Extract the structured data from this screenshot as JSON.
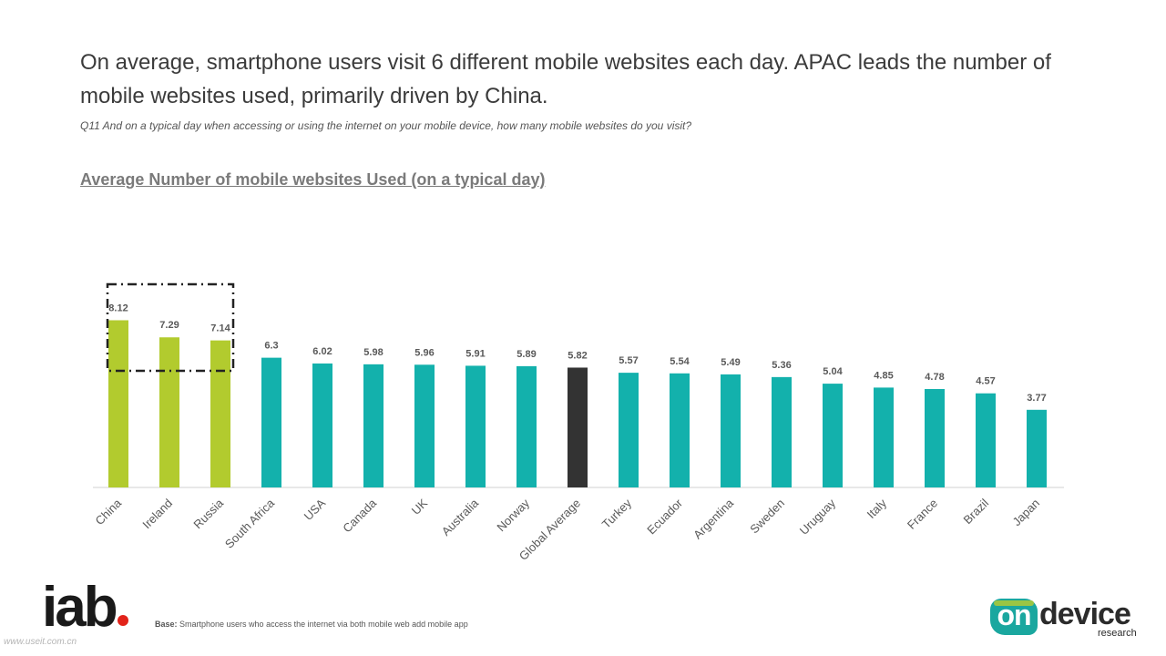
{
  "headline": "On average, smartphone users visit 6 different mobile websites each day. APAC leads the number of mobile websites used, primarily driven by China.",
  "question": "Q11 And on a typical day when accessing or using the internet on your mobile device, how many mobile websites do you visit?",
  "chart_data": {
    "type": "bar",
    "title": "Average Number of mobile websites Used (on a typical day)",
    "xlabel": "",
    "ylabel": "",
    "ylim": [
      0,
      10
    ],
    "grid": false,
    "legend": "none",
    "categories": [
      "China",
      "Ireland",
      "Russia",
      "South Africa",
      "USA",
      "Canada",
      "UK",
      "Australia",
      "Norway",
      "Global Average",
      "Turkey",
      "Ecuador",
      "Argentina",
      "Sweden",
      "Uruguay",
      "Italy",
      "France",
      "Brazil",
      "Japan"
    ],
    "values": [
      8.12,
      7.29,
      7.14,
      6.3,
      6.02,
      5.98,
      5.96,
      5.91,
      5.89,
      5.82,
      5.57,
      5.54,
      5.49,
      5.36,
      5.04,
      4.85,
      4.78,
      4.57,
      3.77
    ],
    "value_labels": [
      "8.12",
      "7.29",
      "7.14",
      "6.3",
      "6.02",
      "5.98",
      "5.96",
      "5.91",
      "5.89",
      "5.82",
      "5.57",
      "5.54",
      "5.49",
      "5.36",
      "5.04",
      "4.85",
      "4.78",
      "4.57",
      "3.77"
    ],
    "bar_groups": [
      "top",
      "top",
      "top",
      "other",
      "other",
      "other",
      "other",
      "other",
      "other",
      "average",
      "other",
      "other",
      "other",
      "other",
      "other",
      "other",
      "other",
      "other",
      "other"
    ],
    "highlight": "China, Ireland, Russia (dash-dot box)"
  },
  "colors": {
    "top": "#b2cb2e",
    "other": "#13b1ac",
    "average": "#333333",
    "axis": "#d0d0d0",
    "highlight_box": "#222222"
  },
  "footer": {
    "base_label": "Base:",
    "base_text": " Smartphone users who access the internet via both mobile web add mobile app",
    "iab_logo": "iab",
    "ondevice_logo_on": "on",
    "ondevice_logo_device": "device",
    "ondevice_logo_research": "research",
    "watermark": "www.useit.com.cn"
  }
}
